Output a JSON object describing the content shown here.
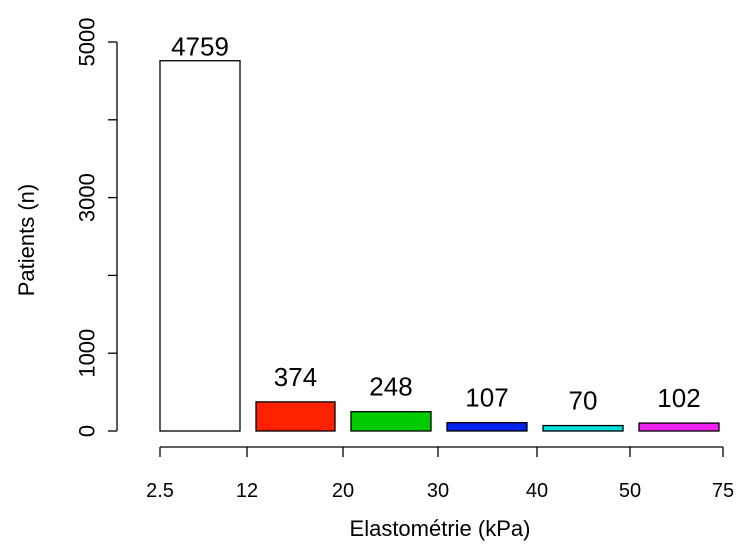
{
  "chart_data": {
    "type": "bar",
    "title": "",
    "xlabel": "Elastométrie (kPa)",
    "ylabel": "Patients (n)",
    "ylim": [
      0,
      5000
    ],
    "y_ticks": [
      0,
      1000,
      3000,
      5000
    ],
    "x_ticks": [
      "2.5",
      "12",
      "20",
      "30",
      "40",
      "50",
      "75"
    ],
    "categories": [
      "2.5–12",
      "12–20",
      "20–30",
      "30–40",
      "40–50",
      "50–75"
    ],
    "values": [
      4759,
      374,
      248,
      107,
      70,
      102
    ],
    "value_labels": [
      "4759",
      "374",
      "248",
      "107",
      "70",
      "102"
    ],
    "colors": [
      "#ffffff",
      "#ff2200",
      "#00cc00",
      "#0022ee",
      "#00dddd",
      "#ee22ee"
    ],
    "grid": false,
    "legend": "none"
  }
}
